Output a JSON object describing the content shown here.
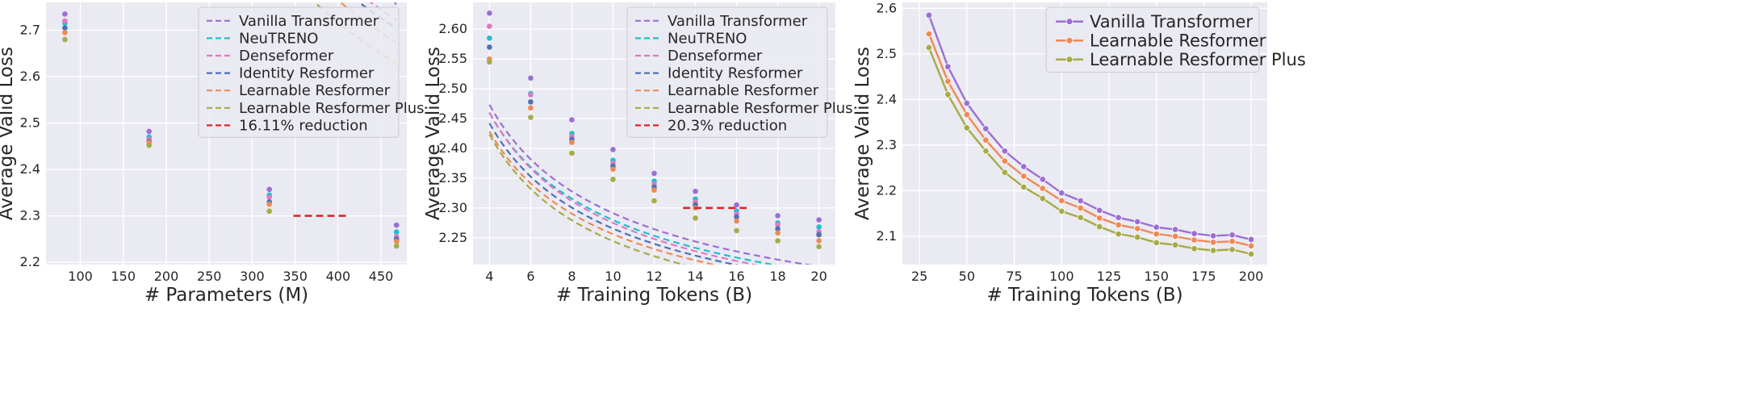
{
  "colors": {
    "plot_bg": "#eaeaf2",
    "grid": "#ffffff",
    "legend_bg": "#eaeaf2",
    "legend_border": "#cccccc",
    "text": "#262626"
  },
  "chart_data": [
    {
      "type": "line",
      "xlabel": "# Parameters (M)",
      "ylabel": "Average Valid Loss",
      "xlim": [
        60,
        480
      ],
      "ylim": [
        2.195,
        2.76
      ],
      "xticks": [
        100,
        150,
        200,
        250,
        300,
        350,
        400,
        450
      ],
      "yticks": [
        2.2,
        2.3,
        2.4,
        2.5,
        2.6,
        2.7
      ],
      "ytick_decimals": 1,
      "grid": true,
      "legend_loc": "top-right",
      "legend_size": "normal",
      "series": [
        {
          "name": "Vanilla Transformer",
          "color": "#9b6fd6",
          "style": "dashed-fit",
          "points": [
            [
              82,
              2.735
            ],
            [
              180,
              2.482
            ],
            [
              320,
              2.357
            ],
            [
              468,
              2.28
            ]
          ],
          "fit": {
            "a": 91.5,
            "b": -0.78,
            "c": 2.0
          }
        },
        {
          "name": "NeuTRENO",
          "color": "#1fbfcf",
          "style": "dashed-fit",
          "points": [
            [
              82,
              2.715
            ],
            [
              180,
              2.47
            ],
            [
              320,
              2.345
            ],
            [
              468,
              2.265
            ]
          ],
          "fit": {
            "a": 73.8,
            "b": -0.728,
            "c": 2.0
          }
        },
        {
          "name": "Denseformer",
          "color": "#e377c2",
          "style": "dashed-fit",
          "points": [
            [
              82,
              2.72
            ],
            [
              180,
              2.465
            ],
            [
              320,
              2.34
            ],
            [
              468,
              2.255
            ]
          ],
          "fit": {
            "a": 90.6,
            "b": -0.786,
            "c": 2.0
          }
        },
        {
          "name": "Identity Resformer",
          "color": "#4a72b8",
          "style": "dashed-fit",
          "points": [
            [
              82,
              2.705
            ],
            [
              180,
              2.46
            ],
            [
              320,
              2.33
            ],
            [
              468,
              2.25
            ]
          ],
          "fit": {
            "a": 90.6,
            "b": -0.79,
            "c": 2.0
          }
        },
        {
          "name": "Learnable Resformer",
          "color": "#ee8a56",
          "style": "dashed-fit",
          "points": [
            [
              82,
              2.695
            ],
            [
              180,
              2.458
            ],
            [
              320,
              2.325
            ],
            [
              468,
              2.245
            ]
          ],
          "fit": {
            "a": 95.6,
            "b": -0.806,
            "c": 2.0
          }
        },
        {
          "name": "Learnable Resformer Plus",
          "color": "#a7ab45",
          "style": "dashed-fit",
          "points": [
            [
              82,
              2.68
            ],
            [
              180,
              2.452
            ],
            [
              320,
              2.31
            ],
            [
              468,
              2.235
            ]
          ],
          "fit": {
            "a": 106.7,
            "b": -0.835,
            "c": 2.0
          }
        },
        {
          "name": "16.11% reduction",
          "color": "#e0262b",
          "style": "dashed-segment",
          "points": [
            [
              348,
              2.3
            ],
            [
              412,
              2.3
            ]
          ]
        }
      ]
    },
    {
      "type": "line",
      "xlabel": "# Training Tokens (B)",
      "ylabel": "Average Valid Loss",
      "xlim": [
        3.2,
        20.8
      ],
      "ylim": [
        2.205,
        2.645
      ],
      "xticks": [
        4,
        6,
        8,
        10,
        12,
        14,
        16,
        18,
        20
      ],
      "yticks": [
        2.25,
        2.3,
        2.35,
        2.4,
        2.45,
        2.5,
        2.55,
        2.6
      ],
      "ytick_decimals": 2,
      "grid": true,
      "legend_loc": "top-right",
      "legend_size": "normal",
      "series": [
        {
          "name": "Vanilla Transformer",
          "color": "#9b6fd6",
          "style": "dashed-fit",
          "points": [
            [
              4,
              2.627
            ],
            [
              6,
              2.518
            ],
            [
              8,
              2.448
            ],
            [
              10,
              2.398
            ],
            [
              12,
              2.358
            ],
            [
              14,
              2.328
            ],
            [
              16,
              2.305
            ],
            [
              18,
              2.287
            ],
            [
              20,
              2.28
            ]
          ],
          "fit": {
            "a": 0.987,
            "b": -0.53,
            "c": 2.0
          }
        },
        {
          "name": "NeuTRENO",
          "color": "#1fbfcf",
          "style": "dashed-fit",
          "points": [
            [
              4,
              2.585
            ],
            [
              6,
              2.492
            ],
            [
              8,
              2.425
            ],
            [
              10,
              2.38
            ],
            [
              12,
              2.345
            ],
            [
              14,
              2.315
            ],
            [
              16,
              2.295
            ],
            [
              18,
              2.275
            ],
            [
              20,
              2.268
            ]
          ],
          "fit": {
            "a": 0.974,
            "b": -0.542,
            "c": 2.0
          }
        },
        {
          "name": "Denseformer",
          "color": "#e377c2",
          "style": "dashed-fit",
          "points": [
            [
              4,
              2.605
            ],
            [
              6,
              2.49
            ],
            [
              8,
              2.42
            ],
            [
              10,
              2.375
            ],
            [
              12,
              2.34
            ],
            [
              14,
              2.31
            ],
            [
              16,
              2.29
            ],
            [
              18,
              2.272
            ],
            [
              20,
              2.26
            ]
          ],
          "fit": {
            "a": 1.005,
            "b": -0.563,
            "c": 2.0
          }
        },
        {
          "name": "Identity Resformer",
          "color": "#4a72b8",
          "style": "dashed-fit",
          "points": [
            [
              4,
              2.57
            ],
            [
              6,
              2.478
            ],
            [
              8,
              2.415
            ],
            [
              10,
              2.37
            ],
            [
              12,
              2.335
            ],
            [
              14,
              2.305
            ],
            [
              16,
              2.285
            ],
            [
              18,
              2.265
            ],
            [
              20,
              2.255
            ]
          ],
          "fit": {
            "a": 0.957,
            "b": -0.557,
            "c": 2.0
          }
        },
        {
          "name": "Learnable Resformer",
          "color": "#ee8a56",
          "style": "dashed-fit",
          "points": [
            [
              4,
              2.55
            ],
            [
              6,
              2.468
            ],
            [
              8,
              2.41
            ],
            [
              10,
              2.365
            ],
            [
              12,
              2.33
            ],
            [
              14,
              2.3
            ],
            [
              16,
              2.278
            ],
            [
              18,
              2.258
            ],
            [
              20,
              2.245
            ]
          ],
          "fit": {
            "a": 0.934,
            "b": -0.562,
            "c": 2.0
          }
        },
        {
          "name": "Learnable Resformer Plus",
          "color": "#a7ab45",
          "style": "dashed-fit",
          "points": [
            [
              4,
              2.545
            ],
            [
              6,
              2.452
            ],
            [
              8,
              2.392
            ],
            [
              10,
              2.348
            ],
            [
              12,
              2.312
            ],
            [
              14,
              2.283
            ],
            [
              16,
              2.262
            ],
            [
              18,
              2.245
            ],
            [
              20,
              2.235
            ]
          ],
          "fit": {
            "a": 0.973,
            "b": -0.6,
            "c": 2.0
          }
        },
        {
          "name": "20.3% reduction",
          "color": "#e0262b",
          "style": "dashed-segment",
          "points": [
            [
              13.4,
              2.3
            ],
            [
              16.6,
              2.3
            ]
          ]
        }
      ]
    },
    {
      "type": "line",
      "xlabel": "# Training Tokens (B)",
      "ylabel": "Average Valid Loss",
      "xlim": [
        16,
        208.5
      ],
      "ylim": [
        2.038,
        2.613
      ],
      "xticks": [
        25,
        50,
        75,
        100,
        125,
        150,
        175,
        200
      ],
      "yticks": [
        2.1,
        2.2,
        2.3,
        2.4,
        2.5,
        2.6
      ],
      "ytick_decimals": 1,
      "grid": true,
      "legend_loc": "top-right",
      "legend_size": "large",
      "series": [
        {
          "name": "Vanilla Transformer",
          "color": "#9b6fd6",
          "style": "solid-markers",
          "points": [
            [
              30,
              2.585
            ],
            [
              40,
              2.472
            ],
            [
              50,
              2.392
            ],
            [
              60,
              2.336
            ],
            [
              70,
              2.287
            ],
            [
              80,
              2.253
            ],
            [
              90,
              2.225
            ],
            [
              100,
              2.195
            ],
            [
              110,
              2.178
            ],
            [
              120,
              2.157
            ],
            [
              130,
              2.141
            ],
            [
              140,
              2.132
            ],
            [
              150,
              2.12
            ],
            [
              160,
              2.115
            ],
            [
              170,
              2.106
            ],
            [
              180,
              2.101
            ],
            [
              190,
              2.103
            ],
            [
              200,
              2.093
            ]
          ]
        },
        {
          "name": "Learnable Resformer",
          "color": "#ee8a56",
          "style": "solid-markers",
          "points": [
            [
              30,
              2.544
            ],
            [
              40,
              2.44
            ],
            [
              50,
              2.367
            ],
            [
              60,
              2.311
            ],
            [
              70,
              2.265
            ],
            [
              80,
              2.232
            ],
            [
              90,
              2.205
            ],
            [
              100,
              2.178
            ],
            [
              110,
              2.162
            ],
            [
              120,
              2.14
            ],
            [
              130,
              2.125
            ],
            [
              140,
              2.117
            ],
            [
              150,
              2.105
            ],
            [
              160,
              2.1
            ],
            [
              170,
              2.092
            ],
            [
              180,
              2.087
            ],
            [
              190,
              2.089
            ],
            [
              200,
              2.079
            ]
          ]
        },
        {
          "name": "Learnable Resformer Plus",
          "color": "#a7ab45",
          "style": "solid-markers",
          "points": [
            [
              30,
              2.514
            ],
            [
              40,
              2.411
            ],
            [
              50,
              2.338
            ],
            [
              60,
              2.287
            ],
            [
              70,
              2.24
            ],
            [
              80,
              2.208
            ],
            [
              90,
              2.183
            ],
            [
              100,
              2.155
            ],
            [
              110,
              2.141
            ],
            [
              120,
              2.121
            ],
            [
              130,
              2.105
            ],
            [
              140,
              2.098
            ],
            [
              150,
              2.086
            ],
            [
              160,
              2.081
            ],
            [
              170,
              2.073
            ],
            [
              180,
              2.069
            ],
            [
              190,
              2.071
            ],
            [
              200,
              2.061
            ]
          ]
        }
      ]
    }
  ]
}
